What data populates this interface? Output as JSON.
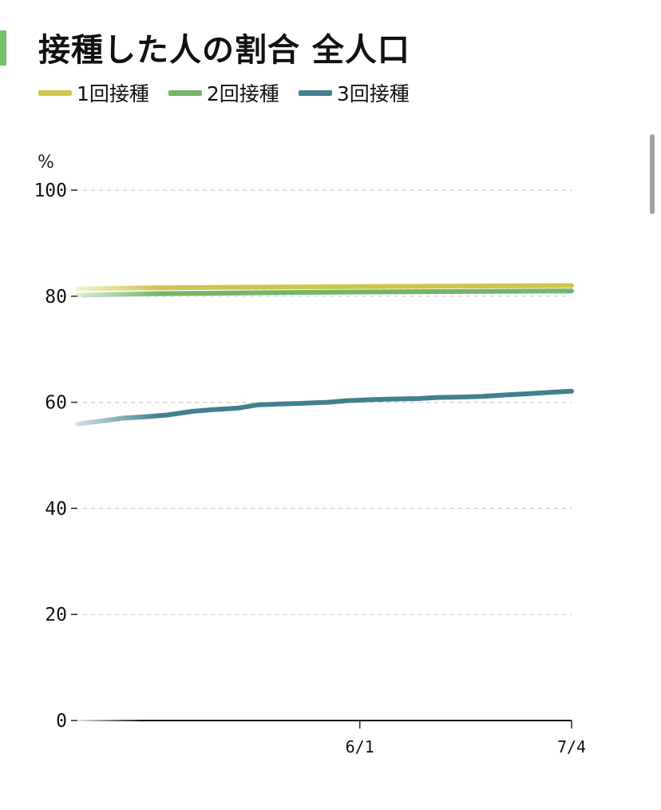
{
  "title": "接種した人の割合 全人口",
  "colors": {
    "accent": "#74c06f",
    "dose1": "#cdc54c",
    "dose2": "#76b56a",
    "dose3": "#42808e"
  },
  "legend": [
    {
      "label": "1回接種",
      "color": "#cdc54c"
    },
    {
      "label": "2回接種",
      "color": "#76b56a"
    },
    {
      "label": "3回接種",
      "color": "#42808e"
    }
  ],
  "chart_data": {
    "type": "line",
    "ylabel": "%",
    "ylim": [
      0,
      100
    ],
    "y_ticks": [
      0,
      20,
      40,
      60,
      80,
      100
    ],
    "x_ticks": [
      {
        "label": "6/1",
        "date": "2022-06-01"
      },
      {
        "label": "7/4",
        "date": "2022-07-04"
      }
    ],
    "x_range": [
      "2022-04-18",
      "2022-07-04"
    ],
    "grid": true,
    "legend_position": "top-left",
    "series": [
      {
        "name": "1回接種",
        "color": "#cdc54c",
        "points": [
          {
            "x": "2022-04-18",
            "y": 81.4
          },
          {
            "x": "2022-05-01",
            "y": 81.6
          },
          {
            "x": "2022-06-01",
            "y": 81.8
          },
          {
            "x": "2022-07-04",
            "y": 82.0
          }
        ]
      },
      {
        "name": "2回接種",
        "color": "#76b56a",
        "points": [
          {
            "x": "2022-04-18",
            "y": 80.2
          },
          {
            "x": "2022-05-01",
            "y": 80.5
          },
          {
            "x": "2022-06-01",
            "y": 80.8
          },
          {
            "x": "2022-07-04",
            "y": 81.0
          }
        ]
      },
      {
        "name": "3回接種",
        "color": "#42808e",
        "points": [
          {
            "x": "2022-04-18",
            "y": 55.9
          },
          {
            "x": "2022-04-22",
            "y": 56.5
          },
          {
            "x": "2022-04-25",
            "y": 57.0
          },
          {
            "x": "2022-04-29",
            "y": 57.3
          },
          {
            "x": "2022-05-02",
            "y": 57.6
          },
          {
            "x": "2022-05-06",
            "y": 58.3
          },
          {
            "x": "2022-05-09",
            "y": 58.6
          },
          {
            "x": "2022-05-13",
            "y": 58.9
          },
          {
            "x": "2022-05-16",
            "y": 59.5
          },
          {
            "x": "2022-05-20",
            "y": 59.7
          },
          {
            "x": "2022-05-23",
            "y": 59.8
          },
          {
            "x": "2022-05-27",
            "y": 60.0
          },
          {
            "x": "2022-05-30",
            "y": 60.3
          },
          {
            "x": "2022-06-03",
            "y": 60.5
          },
          {
            "x": "2022-06-06",
            "y": 60.6
          },
          {
            "x": "2022-06-10",
            "y": 60.7
          },
          {
            "x": "2022-06-13",
            "y": 60.9
          },
          {
            "x": "2022-06-17",
            "y": 61.0
          },
          {
            "x": "2022-06-20",
            "y": 61.1
          },
          {
            "x": "2022-06-24",
            "y": 61.4
          },
          {
            "x": "2022-06-27",
            "y": 61.6
          },
          {
            "x": "2022-07-01",
            "y": 61.9
          },
          {
            "x": "2022-07-04",
            "y": 62.1
          }
        ]
      }
    ]
  }
}
